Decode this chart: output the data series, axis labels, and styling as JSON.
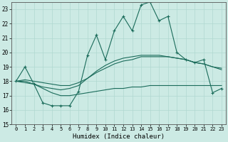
{
  "xlabel": "Humidex (Indice chaleur)",
  "ylabel": "",
  "bg_color": "#cceae4",
  "line_color": "#1a6b5a",
  "grid_color": "#b0d8d0",
  "xlim": [
    -0.5,
    23.5
  ],
  "ylim": [
    15,
    23.5
  ],
  "yticks": [
    15,
    16,
    17,
    18,
    19,
    20,
    21,
    22,
    23
  ],
  "xticks": [
    0,
    1,
    2,
    3,
    4,
    5,
    6,
    7,
    8,
    9,
    10,
    11,
    12,
    13,
    14,
    15,
    16,
    17,
    18,
    19,
    20,
    21,
    22,
    23
  ],
  "main_line": [
    18.0,
    19.0,
    17.8,
    16.5,
    16.3,
    16.3,
    16.3,
    17.3,
    19.8,
    21.2,
    19.5,
    21.5,
    22.5,
    21.5,
    23.3,
    23.5,
    22.2,
    22.5,
    20.0,
    19.5,
    19.3,
    19.5,
    17.2,
    17.5
  ],
  "upper_line": [
    18.0,
    18.0,
    17.8,
    17.6,
    17.5,
    17.4,
    17.5,
    17.7,
    18.2,
    18.7,
    19.1,
    19.4,
    19.6,
    19.7,
    19.8,
    19.8,
    19.8,
    19.7,
    19.6,
    19.5,
    19.3,
    19.2,
    19.0,
    18.8
  ],
  "lower_line": [
    18.0,
    17.9,
    17.8,
    17.5,
    17.2,
    17.0,
    17.0,
    17.1,
    17.2,
    17.3,
    17.4,
    17.5,
    17.5,
    17.6,
    17.6,
    17.7,
    17.7,
    17.7,
    17.7,
    17.7,
    17.7,
    17.7,
    17.7,
    17.7
  ],
  "trend_line": [
    18.0,
    18.1,
    18.0,
    17.9,
    17.8,
    17.7,
    17.7,
    17.9,
    18.2,
    18.6,
    18.9,
    19.2,
    19.4,
    19.5,
    19.7,
    19.7,
    19.7,
    19.7,
    19.6,
    19.5,
    19.3,
    19.2,
    19.0,
    18.9
  ]
}
